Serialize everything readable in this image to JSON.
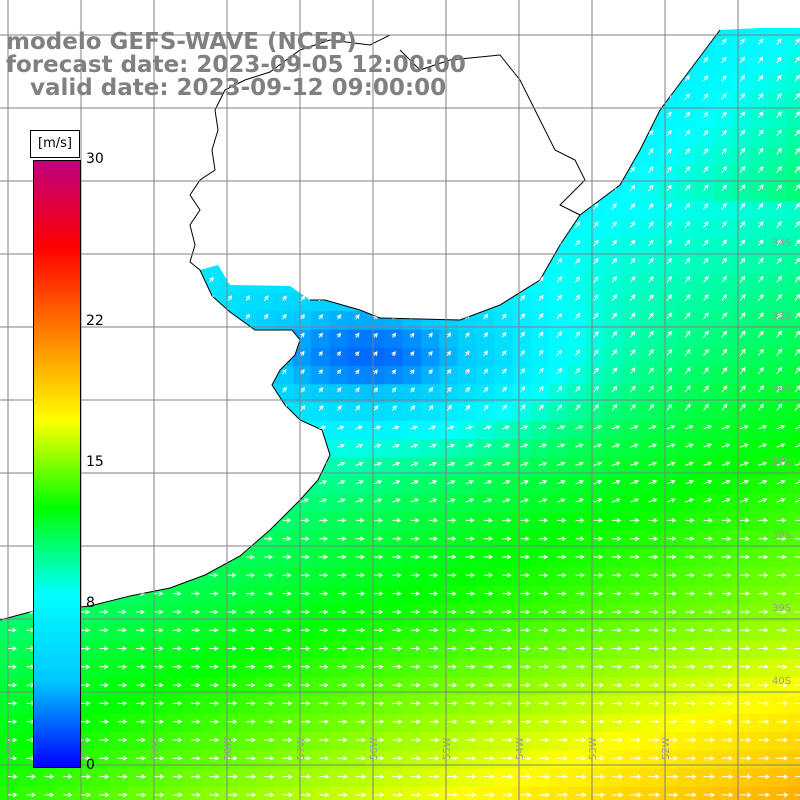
{
  "title": {
    "line1": "modelo GEFS-WAVE (NCEP)",
    "line2": "forecast date: 2023-09-05 12:00:00",
    "line3": "   valid date: 2023-09-12 09:00:00"
  },
  "colorbar": {
    "unit": "[m/s]",
    "ticks": [
      "30",
      "22",
      "15",
      "8",
      "0"
    ],
    "tick_values": [
      30,
      22,
      15,
      8,
      0
    ],
    "range": [
      0,
      30
    ],
    "colors": [
      "#0000ff",
      "#00c8ff",
      "#00ffff",
      "#00ff00",
      "#ffff00",
      "#ff8000",
      "#ff0000",
      "#c00080"
    ]
  },
  "map": {
    "lat_labels": [
      "34S",
      "35S",
      "36S",
      "37S",
      "38S",
      "39S",
      "40S"
    ],
    "lon_labels": [
      "61W",
      "60W",
      "59W",
      "58W",
      "57W",
      "56W",
      "55W",
      "54W",
      "53W",
      "52W"
    ],
    "grid": true,
    "land_color": "#ffffff",
    "arrow_color": "#ffffff",
    "variable": "wind speed"
  }
}
